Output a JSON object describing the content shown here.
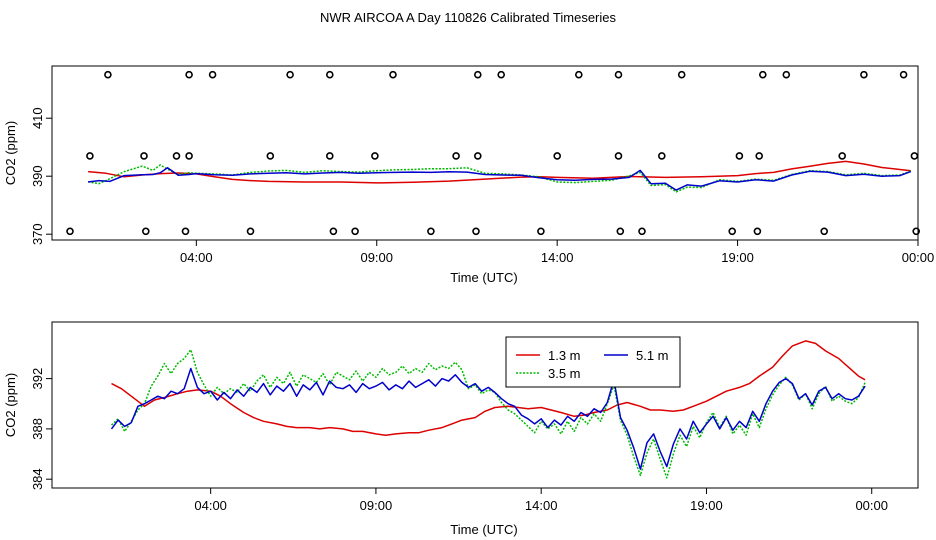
{
  "title": "NWR AIRCOA A  Day 110826  Calibrated Timeseries",
  "chart_data": [
    {
      "type": "line",
      "panel": "top",
      "xlabel": "Time (UTC)",
      "ylabel": "CO2 (ppm)",
      "xlim": [
        0.0,
        24.0
      ],
      "ylim": [
        368.0,
        428.0
      ],
      "x_ticks": [
        4,
        9,
        14,
        19,
        24
      ],
      "x_tick_labels": [
        "04:00",
        "09:00",
        "14:00",
        "19:00",
        "00:00"
      ],
      "y_ticks": [
        370,
        390,
        410
      ],
      "y_tick_labels": [
        "370",
        "390",
        "410"
      ],
      "series": [
        {
          "name": "1.3 m",
          "color": "#dd0000",
          "x": [
            1.0,
            1.5,
            2.0,
            2.5,
            3.0,
            3.5,
            4.0,
            4.5,
            5.0,
            5.5,
            6.0,
            7.0,
            8.0,
            9.0,
            10.0,
            11.0,
            12.0,
            13.0,
            13.5,
            14.0,
            15.0,
            16.0,
            17.0,
            18.0,
            19.0,
            19.5,
            20.0,
            20.5,
            21.0,
            21.5,
            22.0,
            22.5,
            23.0,
            23.8
          ],
          "values": [
            391.6,
            391.0,
            389.8,
            390.4,
            390.9,
            391.1,
            390.8,
            389.8,
            388.9,
            388.5,
            388.2,
            388.0,
            388.0,
            387.7,
            387.9,
            388.3,
            389.0,
            389.7,
            389.8,
            389.6,
            389.3,
            389.9,
            389.6,
            389.8,
            390.2,
            390.9,
            391.3,
            392.5,
            393.4,
            394.4,
            395.1,
            394.2,
            393.0,
            391.9
          ]
        },
        {
          "name": "3.5 m",
          "color": "#00bb00",
          "x": [
            1.0,
            1.3,
            1.6,
            2.0,
            2.5,
            2.8,
            3.0,
            3.2,
            3.5,
            3.8,
            4.0,
            4.5,
            5.0,
            5.5,
            6.0,
            6.5,
            7.0,
            7.5,
            8.0,
            8.5,
            9.0,
            9.5,
            10.0,
            10.5,
            11.0,
            11.5,
            12.0,
            12.5,
            13.0,
            13.5,
            14.0,
            14.5,
            15.0,
            15.5,
            16.0,
            16.3,
            16.6,
            17.0,
            17.3,
            17.6,
            18.0,
            18.5,
            19.0,
            19.5,
            20.0,
            20.5,
            21.0,
            21.5,
            22.0,
            22.5,
            23.0,
            23.5,
            23.8
          ],
          "values": [
            388.1,
            387.4,
            389.1,
            391.6,
            393.5,
            392.0,
            393.9,
            392.4,
            390.6,
            391.2,
            391.0,
            390.8,
            390.4,
            391.3,
            391.8,
            392.0,
            391.3,
            391.9,
            391.6,
            391.4,
            391.9,
            392.2,
            392.3,
            392.6,
            392.6,
            392.9,
            391.0,
            390.8,
            390.4,
            389.8,
            388.0,
            387.8,
            388.2,
            388.6,
            390.1,
            391.3,
            386.8,
            387.1,
            384.6,
            386.2,
            386.1,
            388.8,
            388.2,
            389.0,
            388.6,
            390.6,
            391.9,
            391.6,
            390.5,
            391.0,
            390.2,
            390.4,
            391.8
          ]
        },
        {
          "name": "5.1 m",
          "color": "#0000cc",
          "x": [
            1.0,
            1.3,
            1.6,
            2.0,
            2.5,
            2.8,
            3.0,
            3.2,
            3.5,
            3.8,
            4.0,
            4.5,
            5.0,
            5.5,
            6.0,
            6.5,
            7.0,
            7.5,
            8.0,
            8.5,
            9.0,
            9.5,
            10.0,
            10.5,
            11.0,
            11.5,
            12.0,
            12.5,
            13.0,
            13.5,
            14.0,
            14.5,
            15.0,
            15.5,
            16.0,
            16.3,
            16.6,
            17.0,
            17.3,
            17.6,
            18.0,
            18.5,
            19.0,
            19.5,
            20.0,
            20.5,
            21.0,
            21.5,
            22.0,
            22.5,
            23.0,
            23.5,
            23.8
          ],
          "values": [
            388.0,
            388.5,
            388.2,
            390.2,
            390.5,
            390.6,
            391.2,
            392.9,
            390.3,
            390.6,
            390.9,
            390.5,
            390.3,
            390.8,
            391.0,
            391.2,
            390.8,
            391.1,
            391.3,
            391.0,
            391.2,
            391.3,
            391.4,
            391.3,
            391.5,
            391.4,
            390.6,
            390.4,
            390.3,
            389.5,
            388.8,
            388.6,
            388.9,
            389.0,
            389.6,
            392.0,
            387.4,
            387.6,
            385.2,
            387.0,
            386.6,
            388.4,
            388.0,
            388.8,
            388.3,
            390.4,
            391.7,
            391.4,
            390.2,
            390.7,
            390.0,
            390.2,
            391.6
          ]
        }
      ],
      "markers": {
        "shape": "open-circle",
        "groups": [
          {
            "y": 425.0,
            "x": [
              1.55,
              3.8,
              4.45,
              6.6,
              7.7,
              9.45,
              11.8,
              12.45,
              14.6,
              15.7,
              17.45,
              19.7,
              20.35,
              22.5,
              23.6
            ]
          },
          {
            "y": 397.0,
            "x": [
              1.05,
              2.55,
              3.45,
              3.8,
              6.05,
              7.7,
              8.95,
              11.2,
              11.8,
              14.0,
              15.7,
              16.9,
              19.05,
              19.6,
              21.9,
              23.9
            ]
          },
          {
            "y": 371.0,
            "x": [
              0.5,
              2.6,
              3.7,
              5.5,
              7.8,
              8.4,
              10.5,
              11.75,
              13.55,
              15.75,
              16.35,
              18.85,
              19.55,
              21.4,
              23.95
            ]
          }
        ]
      }
    },
    {
      "type": "line",
      "panel": "bottom",
      "xlabel": "Time (UTC)",
      "ylabel": "CO2 (ppm)",
      "xlim": [
        -0.8,
        25.4
      ],
      "ylim": [
        383.3,
        396.5
      ],
      "x_ticks": [
        4,
        9,
        14,
        19,
        24
      ],
      "x_tick_labels": [
        "04:00",
        "09:00",
        "14:00",
        "19:00",
        "00:00"
      ],
      "y_ticks": [
        384,
        388,
        392
      ],
      "y_tick_labels": [
        "384",
        "388",
        "392"
      ],
      "legend": {
        "position": "top-center",
        "entries": [
          "1.3 m",
          "5.1 m",
          "3.5 m"
        ]
      },
      "series": [
        {
          "name": "1.3 m",
          "color": "#dd0000",
          "x": [
            1.0,
            1.3,
            1.6,
            2.0,
            2.3,
            2.6,
            3.0,
            3.3,
            3.6,
            4.0,
            4.3,
            4.6,
            5.0,
            5.3,
            5.6,
            6.0,
            6.3,
            6.6,
            7.0,
            7.3,
            7.6,
            8.0,
            8.3,
            8.6,
            9.0,
            9.3,
            9.6,
            10.0,
            10.3,
            10.6,
            11.0,
            11.3,
            11.6,
            12.0,
            12.3,
            12.6,
            13.0,
            13.3,
            13.6,
            14.0,
            14.3,
            14.6,
            15.0,
            15.3,
            15.6,
            16.0,
            16.3,
            16.6,
            17.0,
            17.3,
            17.6,
            18.0,
            18.3,
            18.6,
            19.0,
            19.3,
            19.6,
            20.0,
            20.3,
            20.6,
            21.0,
            21.3,
            21.6,
            22.0,
            22.3,
            22.6,
            23.0,
            23.3,
            23.6,
            23.8
          ],
          "values": [
            391.6,
            391.2,
            390.6,
            389.8,
            390.3,
            390.5,
            390.8,
            391.0,
            391.1,
            391.0,
            390.6,
            390.0,
            389.3,
            388.9,
            388.6,
            388.4,
            388.2,
            388.1,
            388.1,
            388.0,
            388.1,
            388.0,
            387.8,
            387.8,
            387.6,
            387.5,
            387.6,
            387.7,
            387.7,
            387.9,
            388.1,
            388.4,
            388.7,
            388.9,
            389.4,
            389.7,
            389.8,
            389.7,
            389.6,
            389.7,
            389.5,
            389.3,
            389.0,
            389.1,
            389.3,
            389.5,
            389.9,
            390.1,
            389.8,
            389.5,
            389.5,
            389.4,
            389.5,
            389.8,
            390.2,
            390.6,
            391.0,
            391.3,
            391.6,
            392.2,
            392.9,
            393.8,
            394.6,
            395.0,
            394.8,
            394.2,
            393.6,
            392.9,
            392.2,
            391.9
          ]
        },
        {
          "name": "3.5 m",
          "color": "#00bb00",
          "x": [
            1.0,
            1.2,
            1.4,
            1.6,
            1.8,
            2.0,
            2.2,
            2.4,
            2.6,
            2.8,
            3.0,
            3.2,
            3.4,
            3.6,
            3.8,
            4.0,
            4.2,
            4.4,
            4.6,
            4.8,
            5.0,
            5.2,
            5.4,
            5.6,
            5.8,
            6.0,
            6.2,
            6.4,
            6.6,
            6.8,
            7.0,
            7.2,
            7.4,
            7.6,
            7.8,
            8.0,
            8.2,
            8.4,
            8.6,
            8.8,
            9.0,
            9.2,
            9.4,
            9.6,
            9.8,
            10.0,
            10.2,
            10.4,
            10.6,
            10.8,
            11.0,
            11.2,
            11.4,
            11.6,
            11.8,
            12.0,
            12.2,
            12.4,
            12.6,
            12.8,
            13.0,
            13.2,
            13.4,
            13.6,
            13.8,
            14.0,
            14.2,
            14.4,
            14.6,
            14.8,
            15.0,
            15.2,
            15.4,
            15.6,
            15.8,
            16.0,
            16.2,
            16.4,
            16.6,
            16.8,
            17.0,
            17.2,
            17.4,
            17.6,
            17.8,
            18.0,
            18.2,
            18.4,
            18.6,
            18.8,
            19.0,
            19.2,
            19.4,
            19.6,
            19.8,
            20.0,
            20.2,
            20.4,
            20.6,
            20.8,
            21.0,
            21.2,
            21.4,
            21.6,
            21.8,
            22.0,
            22.2,
            22.4,
            22.6,
            22.8,
            23.0,
            23.2,
            23.4,
            23.6,
            23.8
          ],
          "values": [
            388.3,
            388.8,
            387.8,
            388.6,
            389.5,
            390.0,
            391.4,
            392.2,
            393.2,
            392.4,
            393.2,
            393.6,
            394.3,
            392.5,
            391.5,
            390.6,
            391.3,
            390.8,
            391.2,
            390.9,
            391.6,
            391.0,
            391.8,
            392.3,
            391.3,
            392.1,
            391.6,
            392.5,
            391.4,
            392.3,
            392.0,
            391.7,
            392.4,
            391.5,
            392.5,
            392.2,
            391.9,
            392.6,
            391.8,
            392.5,
            392.1,
            392.8,
            392.3,
            392.5,
            393.0,
            392.4,
            392.8,
            392.5,
            393.2,
            392.7,
            393.0,
            392.8,
            393.3,
            392.7,
            391.2,
            391.5,
            390.8,
            391.1,
            390.9,
            390.1,
            389.5,
            389.2,
            388.7,
            388.2,
            387.7,
            388.6,
            388.0,
            388.4,
            387.6,
            388.6,
            387.8,
            388.9,
            388.4,
            389.2,
            388.6,
            390.0,
            391.5,
            388.7,
            387.5,
            385.8,
            384.3,
            386.1,
            387.2,
            385.6,
            384.1,
            386.0,
            387.5,
            386.6,
            388.2,
            387.3,
            388.5,
            389.3,
            388.1,
            389.0,
            387.6,
            388.3,
            387.5,
            389.2,
            388.1,
            389.6,
            390.7,
            391.5,
            392.1,
            391.5,
            390.3,
            390.8,
            389.6,
            390.8,
            391.4,
            390.2,
            390.6,
            390.2,
            390.0,
            390.5,
            391.7
          ]
        },
        {
          "name": "5.1 m",
          "color": "#0000cc",
          "x": [
            1.0,
            1.2,
            1.4,
            1.6,
            1.8,
            2.0,
            2.2,
            2.4,
            2.6,
            2.8,
            3.0,
            3.2,
            3.4,
            3.6,
            3.8,
            4.0,
            4.2,
            4.4,
            4.6,
            4.8,
            5.0,
            5.2,
            5.4,
            5.6,
            5.8,
            6.0,
            6.2,
            6.4,
            6.6,
            6.8,
            7.0,
            7.2,
            7.4,
            7.6,
            7.8,
            8.0,
            8.2,
            8.4,
            8.6,
            8.8,
            9.0,
            9.2,
            9.4,
            9.6,
            9.8,
            10.0,
            10.2,
            10.4,
            10.6,
            10.8,
            11.0,
            11.2,
            11.4,
            11.6,
            11.8,
            12.0,
            12.2,
            12.4,
            12.6,
            12.8,
            13.0,
            13.2,
            13.4,
            13.6,
            13.8,
            14.0,
            14.2,
            14.4,
            14.6,
            14.8,
            15.0,
            15.2,
            15.4,
            15.6,
            15.8,
            16.0,
            16.2,
            16.4,
            16.6,
            16.8,
            17.0,
            17.2,
            17.4,
            17.6,
            17.8,
            18.0,
            18.2,
            18.4,
            18.6,
            18.8,
            19.0,
            19.2,
            19.4,
            19.6,
            19.8,
            20.0,
            20.2,
            20.4,
            20.6,
            20.8,
            21.0,
            21.2,
            21.4,
            21.6,
            21.8,
            22.0,
            22.2,
            22.4,
            22.6,
            22.8,
            23.0,
            23.2,
            23.4,
            23.6,
            23.8
          ],
          "values": [
            388.0,
            388.7,
            388.2,
            388.5,
            389.8,
            390.0,
            390.3,
            390.6,
            390.4,
            391.0,
            390.8,
            391.2,
            392.8,
            391.3,
            390.8,
            391.0,
            390.3,
            390.9,
            390.4,
            391.1,
            390.6,
            391.3,
            390.9,
            391.6,
            390.7,
            391.4,
            391.0,
            391.6,
            390.6,
            391.5,
            391.1,
            391.7,
            390.7,
            391.8,
            391.3,
            391.2,
            391.5,
            390.9,
            391.6,
            391.2,
            391.4,
            391.7,
            391.1,
            391.5,
            391.2,
            391.8,
            391.3,
            391.6,
            391.9,
            391.4,
            392.0,
            391.8,
            392.3,
            391.7,
            391.3,
            391.6,
            391.0,
            391.3,
            390.9,
            390.4,
            390.0,
            389.8,
            389.1,
            388.8,
            388.4,
            388.8,
            388.1,
            388.7,
            388.3,
            389.0,
            388.6,
            389.3,
            389.0,
            389.6,
            389.3,
            390.1,
            391.9,
            388.9,
            387.9,
            386.5,
            384.8,
            386.9,
            387.6,
            386.2,
            385.0,
            386.8,
            388.0,
            387.2,
            388.6,
            387.7,
            388.4,
            389.0,
            388.0,
            388.9,
            387.9,
            388.6,
            388.1,
            389.4,
            388.6,
            390.0,
            391.0,
            391.7,
            392.0,
            391.6,
            390.4,
            390.8,
            389.9,
            391.0,
            391.3,
            390.4,
            390.8,
            390.4,
            390.3,
            390.6,
            391.4
          ]
        }
      ]
    }
  ]
}
